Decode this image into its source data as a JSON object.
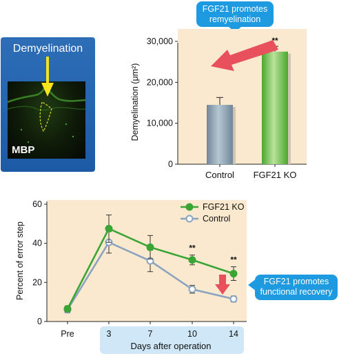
{
  "left_panel": {
    "title": "Demyelination",
    "image_label": "MBP"
  },
  "callouts": {
    "top": [
      "FGF21 promotes",
      "remyelination"
    ],
    "right": [
      "FGF21 promotes",
      "functional recovery"
    ]
  },
  "colors": {
    "control_bar": "#8ca2b3",
    "ko_bar": "#69c04a",
    "ko_line": "#3aa535",
    "control_line": "#8aa4bf",
    "arrow": "#e8505b",
    "callout": "#1e9be0",
    "panel_bg": "#fbe9cf"
  },
  "chart_data": [
    {
      "type": "bar",
      "categories": [
        "Control",
        "FGF21 KO"
      ],
      "values": [
        14500,
        27500
      ],
      "errors": [
        1800,
        1300
      ],
      "significance": [
        "",
        "**"
      ],
      "ylabel": "Demyelination (μm²)",
      "ylim": [
        0,
        30000
      ],
      "yticks": [
        "0",
        "10,000",
        "20,000",
        "30,000"
      ],
      "ytick_values": [
        0,
        10000,
        20000,
        30000
      ]
    },
    {
      "type": "line",
      "x": [
        "Pre",
        "3",
        "7",
        "10",
        "14"
      ],
      "xlabel": "Days after operation",
      "ylabel": "Percent of error step",
      "ylim": [
        0,
        60
      ],
      "yticks": [
        "0",
        "20",
        "40",
        "60"
      ],
      "ytick_values": [
        0,
        20,
        40,
        60
      ],
      "legend_position": "top-right",
      "series": [
        {
          "name": "FGF21 KO",
          "values": [
            6.5,
            47.5,
            38,
            31.5,
            24.5
          ],
          "errors": [
            1.5,
            7,
            6,
            2.5,
            3.5
          ]
        },
        {
          "name": "Control",
          "values": [
            6,
            40.5,
            31,
            16.5,
            11.5
          ],
          "errors": [
            1.5,
            5.5,
            5.5,
            2,
            1.5
          ]
        }
      ],
      "significance": [
        "",
        "",
        "",
        "**",
        "**"
      ]
    }
  ]
}
